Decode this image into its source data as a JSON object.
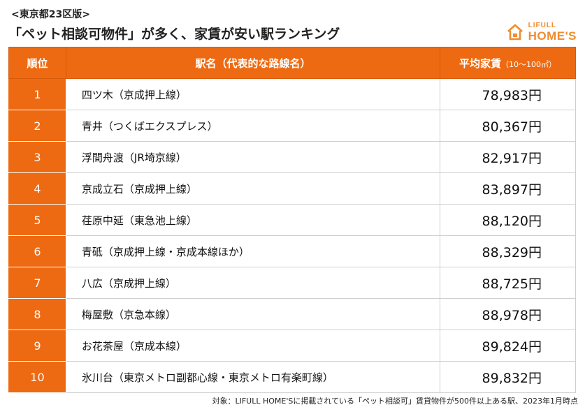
{
  "header": {
    "subtitle": "<東京都23区版>",
    "title": "「ペット相談可物件」が多く、家賃が安い駅ランキング",
    "logo_small": "LIFULL",
    "logo_big": "HOME'S",
    "brand_color": "#ee6a12"
  },
  "table": {
    "columns": {
      "rank": "順位",
      "station": "駅名（代表的な路線名）",
      "rent": "平均家賃",
      "rent_unit": "（10〜100㎡）"
    },
    "rows": [
      {
        "rank": "1",
        "station": "四ツ木（京成押上線）",
        "rent": "78,983円"
      },
      {
        "rank": "2",
        "station": "青井（つくばエクスプレス）",
        "rent": "80,367円"
      },
      {
        "rank": "3",
        "station": "浮間舟渡（JR埼京線）",
        "rent": "82,917円"
      },
      {
        "rank": "4",
        "station": "京成立石（京成押上線）",
        "rent": "83,897円"
      },
      {
        "rank": "5",
        "station": "荏原中延（東急池上線）",
        "rent": "88,120円"
      },
      {
        "rank": "6",
        "station": "青砥（京成押上線・京成本線ほか）",
        "rent": "88,329円"
      },
      {
        "rank": "7",
        "station": "八広（京成押上線）",
        "rent": "88,725円"
      },
      {
        "rank": "8",
        "station": "梅屋敷（京急本線）",
        "rent": "88,978円"
      },
      {
        "rank": "9",
        "station": "お花茶屋（京成本線）",
        "rent": "89,824円"
      },
      {
        "rank": "10",
        "station": "氷川台（東京メトロ副都心線・東京メトロ有楽町線）",
        "rent": "89,832円"
      }
    ]
  },
  "footnote": "対象：LIFULL HOME'Sに掲載されている「ペット相談可」賃貸物件が500件以上ある駅、2023年1月時点"
}
